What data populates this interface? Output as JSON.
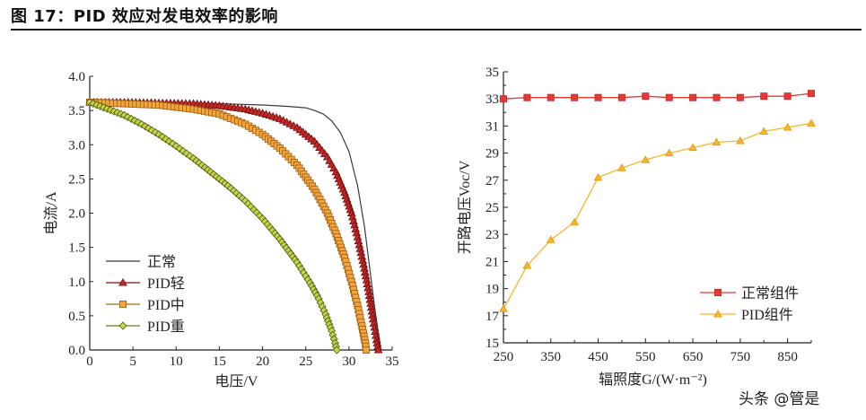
{
  "header": {
    "title": "图 17：PID 效应对发电效率的影响"
  },
  "watermark": "头条 @管是",
  "colors": {
    "normal_iv": "#3a3a3a",
    "pid_light": "#b71c1c",
    "pid_mid": "#f0a030",
    "pid_heavy": "#c8d24a",
    "normal_voc": "#e53935",
    "pid_voc": "#f7b52c"
  },
  "chart_data": [
    {
      "type": "line",
      "title": "",
      "xlabel": "电压/V",
      "ylabel": "电流/A",
      "xlim": [
        0,
        35
      ],
      "ylim": [
        0,
        4.0
      ],
      "xticks": [
        "0",
        "5",
        "10",
        "15",
        "20",
        "25",
        "30",
        "35"
      ],
      "yticks": [
        "0.0",
        "0.5",
        "1.0",
        "1.5",
        "2.0",
        "2.5",
        "3.0",
        "3.5",
        "4.0"
      ],
      "legend_position": "bottom-left",
      "series": [
        {
          "name": "正常",
          "marker": "none",
          "points": [
            [
              0,
              3.62
            ],
            [
              5,
              3.62
            ],
            [
              10,
              3.61
            ],
            [
              15,
              3.6
            ],
            [
              20,
              3.58
            ],
            [
              23,
              3.56
            ],
            [
              25,
              3.54
            ],
            [
              26,
              3.5
            ],
            [
              27,
              3.45
            ],
            [
              28,
              3.35
            ],
            [
              29,
              3.18
            ],
            [
              30,
              2.9
            ],
            [
              31,
              2.4
            ],
            [
              31.8,
              1.8
            ],
            [
              32.5,
              1.1
            ],
            [
              33,
              0.6
            ],
            [
              33.4,
              0.25
            ],
            [
              33.7,
              0
            ]
          ]
        },
        {
          "name": "PID轻",
          "marker": "triangle",
          "points": [
            [
              0,
              3.62
            ],
            [
              4,
              3.62
            ],
            [
              8,
              3.61
            ],
            [
              12,
              3.6
            ],
            [
              15,
              3.57
            ],
            [
              18,
              3.52
            ],
            [
              20,
              3.46
            ],
            [
              22,
              3.38
            ],
            [
              24,
              3.25
            ],
            [
              26,
              3.05
            ],
            [
              27.5,
              2.82
            ],
            [
              28.5,
              2.6
            ],
            [
              29.5,
              2.3
            ],
            [
              30.3,
              2.0
            ],
            [
              31,
              1.65
            ],
            [
              31.7,
              1.25
            ],
            [
              32.3,
              0.85
            ],
            [
              32.8,
              0.45
            ],
            [
              33.2,
              0.15
            ],
            [
              33.4,
              0
            ]
          ]
        },
        {
          "name": "PID中",
          "marker": "square",
          "points": [
            [
              0,
              3.62
            ],
            [
              4,
              3.6
            ],
            [
              8,
              3.58
            ],
            [
              12,
              3.52
            ],
            [
              15,
              3.45
            ],
            [
              18,
              3.3
            ],
            [
              20,
              3.15
            ],
            [
              22,
              2.95
            ],
            [
              24,
              2.7
            ],
            [
              26,
              2.35
            ],
            [
              27.5,
              2.0
            ],
            [
              28.5,
              1.7
            ],
            [
              29.5,
              1.35
            ],
            [
              30.3,
              1.0
            ],
            [
              31,
              0.65
            ],
            [
              31.5,
              0.35
            ],
            [
              31.9,
              0.1
            ],
            [
              32,
              0
            ]
          ]
        },
        {
          "name": "PID重",
          "marker": "diamond",
          "points": [
            [
              0,
              3.62
            ],
            [
              4,
              3.43
            ],
            [
              6,
              3.3
            ],
            [
              8,
              3.15
            ],
            [
              10,
              2.98
            ],
            [
              12,
              2.8
            ],
            [
              14,
              2.6
            ],
            [
              16,
              2.4
            ],
            [
              18,
              2.18
            ],
            [
              20,
              1.92
            ],
            [
              22,
              1.62
            ],
            [
              24,
              1.28
            ],
            [
              25.5,
              0.98
            ],
            [
              26.5,
              0.75
            ],
            [
              27.3,
              0.52
            ],
            [
              28,
              0.28
            ],
            [
              28.4,
              0.1
            ],
            [
              28.6,
              0
            ]
          ]
        }
      ]
    },
    {
      "type": "line",
      "title": "",
      "xlabel": "辐照度G/(W·m⁻²)",
      "ylabel": "开路电压Voc/V",
      "xlim": [
        250,
        900
      ],
      "ylim": [
        15,
        35
      ],
      "xticks": [
        "250",
        "350",
        "450",
        "550",
        "650",
        "750",
        "850"
      ],
      "yticks": [
        "15",
        "17",
        "19",
        "21",
        "23",
        "25",
        "27",
        "29",
        "31",
        "33",
        "35"
      ],
      "legend_position": "bottom-right",
      "series": [
        {
          "name": "正常组件",
          "marker": "square",
          "x": [
            250,
            300,
            350,
            400,
            450,
            500,
            550,
            600,
            650,
            700,
            750,
            800,
            850,
            900
          ],
          "values": [
            33.0,
            33.1,
            33.1,
            33.1,
            33.1,
            33.1,
            33.2,
            33.1,
            33.1,
            33.1,
            33.1,
            33.2,
            33.2,
            33.4
          ]
        },
        {
          "name": "PID组件",
          "marker": "triangle",
          "x": [
            250,
            300,
            350,
            400,
            450,
            500,
            550,
            600,
            650,
            700,
            750,
            800,
            850,
            900
          ],
          "values": [
            17.5,
            20.7,
            22.6,
            23.9,
            27.2,
            27.9,
            28.5,
            29.0,
            29.4,
            29.8,
            29.9,
            30.6,
            30.9,
            31.2
          ]
        }
      ]
    }
  ]
}
